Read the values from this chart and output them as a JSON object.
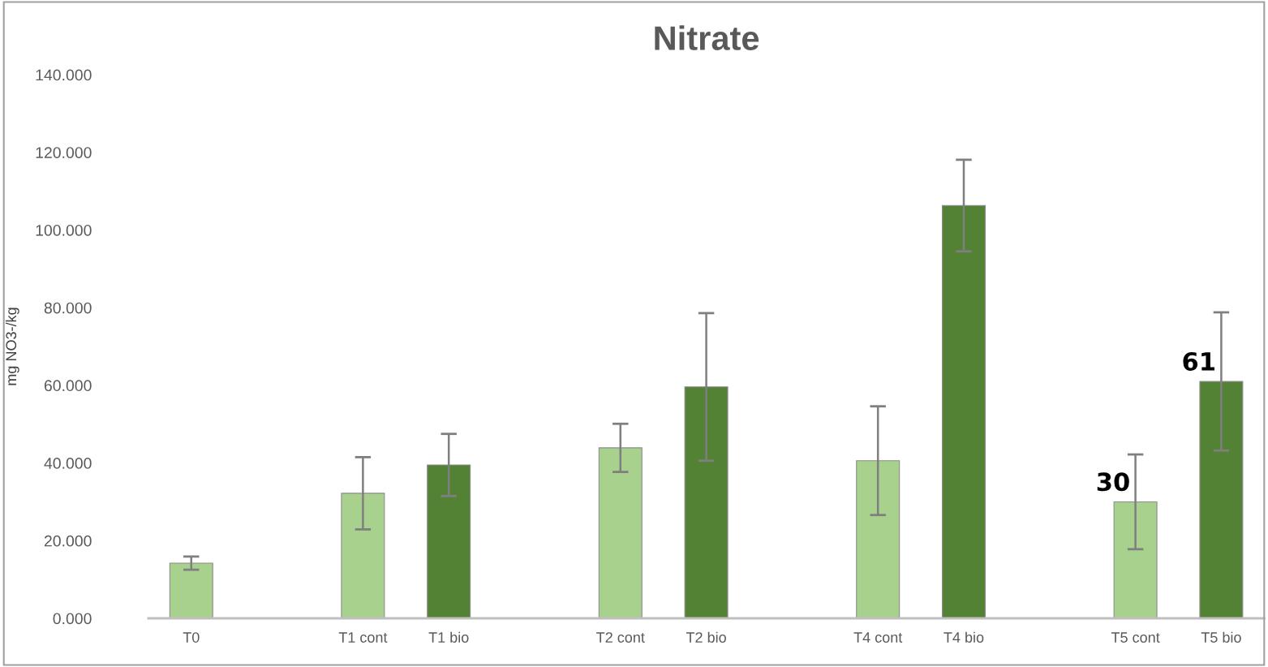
{
  "chart_data": {
    "type": "bar",
    "title": "Nitrate",
    "ylabel": "mg NO3-/kg",
    "categories": [
      "T0",
      null,
      "T1 cont",
      "T1 bio",
      null,
      "T2 cont",
      "T2 bio",
      null,
      "T4 cont",
      "T4 bio",
      null,
      "T5 cont",
      "T5 bio"
    ],
    "values": [
      14.2,
      null,
      32.2,
      39.5,
      null,
      43.9,
      59.6,
      null,
      40.6,
      106.3,
      null,
      30,
      61
    ],
    "errors": [
      1.7,
      null,
      9.3,
      8,
      null,
      6.2,
      19,
      null,
      14,
      11.8,
      null,
      12.2,
      17.8
    ],
    "colors": [
      "#a9d18e",
      null,
      "#a9d18e",
      "#548235",
      null,
      "#a9d18e",
      "#548235",
      null,
      "#a9d18e",
      "#548235",
      null,
      "#a9d18e",
      "#548235"
    ],
    "value_labels": [
      null,
      null,
      null,
      null,
      null,
      null,
      null,
      null,
      null,
      null,
      null,
      "30",
      "61"
    ],
    "ylim": [
      0,
      140
    ],
    "yticks": [
      {
        "value": 0,
        "label": "0.000"
      },
      {
        "value": 20,
        "label": "20.000"
      },
      {
        "value": 40,
        "label": "40.000"
      },
      {
        "value": 60,
        "label": "60.000"
      },
      {
        "value": 80,
        "label": "80.000"
      },
      {
        "value": 100,
        "label": "100.000"
      },
      {
        "value": 120,
        "label": "120.000"
      },
      {
        "value": 140,
        "label": "140.000"
      }
    ],
    "grid": false,
    "legend": false
  }
}
